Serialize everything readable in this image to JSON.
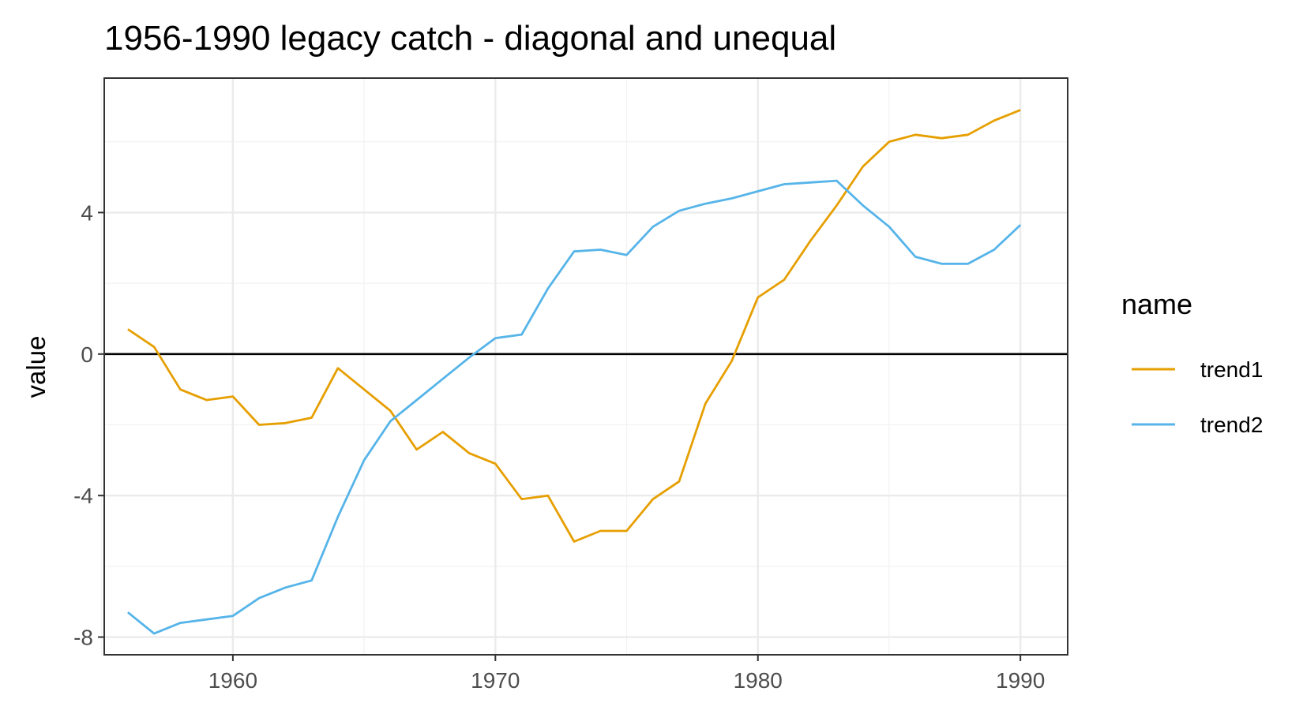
{
  "chart_data": {
    "type": "line",
    "title": "1956-1990 legacy catch - diagonal and unequal",
    "xlabel": "",
    "ylabel": "value",
    "xlim": [
      1955.1,
      1991.8
    ],
    "ylim": [
      -8.5,
      7.8
    ],
    "x_ticks": [
      1960,
      1970,
      1980,
      1990
    ],
    "x_tick_labels": [
      "1960",
      "1970",
      "1980",
      "1990"
    ],
    "y_ticks": [
      -8,
      -4,
      0,
      4
    ],
    "y_tick_labels": [
      "-8",
      "-4",
      "0",
      "4"
    ],
    "x_minor": [
      1955,
      1965,
      1975,
      1985
    ],
    "y_minor": [
      -6,
      -2,
      2,
      6
    ],
    "grid": true,
    "hline": 0,
    "legend": {
      "title": "name",
      "position": "right"
    },
    "x": [
      1956,
      1957,
      1958,
      1959,
      1960,
      1961,
      1962,
      1963,
      1964,
      1965,
      1966,
      1967,
      1968,
      1969,
      1970,
      1971,
      1972,
      1973,
      1974,
      1975,
      1976,
      1977,
      1978,
      1979,
      1980,
      1981,
      1982,
      1983,
      1984,
      1985,
      1986,
      1987,
      1988,
      1989,
      1990
    ],
    "series": [
      {
        "name": "trend1",
        "color": "#E69F00",
        "values": [
          0.7,
          0.2,
          -1.0,
          -1.3,
          -1.2,
          -2.0,
          -1.95,
          -1.8,
          -0.4,
          -1.0,
          -1.6,
          -2.7,
          -2.2,
          -2.8,
          -3.1,
          -4.1,
          -4.0,
          -5.3,
          -5.0,
          -5.0,
          -4.1,
          -3.6,
          -1.4,
          -0.2,
          1.6,
          2.1,
          3.2,
          4.2,
          5.3,
          6.0,
          6.2,
          6.1,
          6.2,
          6.6,
          6.9
        ]
      },
      {
        "name": "trend2",
        "color": "#56B4E9",
        "values": [
          -7.3,
          -7.9,
          -7.6,
          -7.5,
          -7.4,
          -6.9,
          -6.6,
          -6.4,
          -4.6,
          -3.0,
          -1.9,
          -1.3,
          -0.7,
          -0.1,
          0.45,
          0.55,
          1.85,
          2.9,
          2.95,
          2.8,
          3.6,
          4.05,
          4.25,
          4.4,
          4.6,
          4.8,
          4.85,
          4.9,
          4.2,
          3.6,
          2.75,
          2.55,
          2.55,
          2.95,
          3.65
        ]
      }
    ]
  }
}
